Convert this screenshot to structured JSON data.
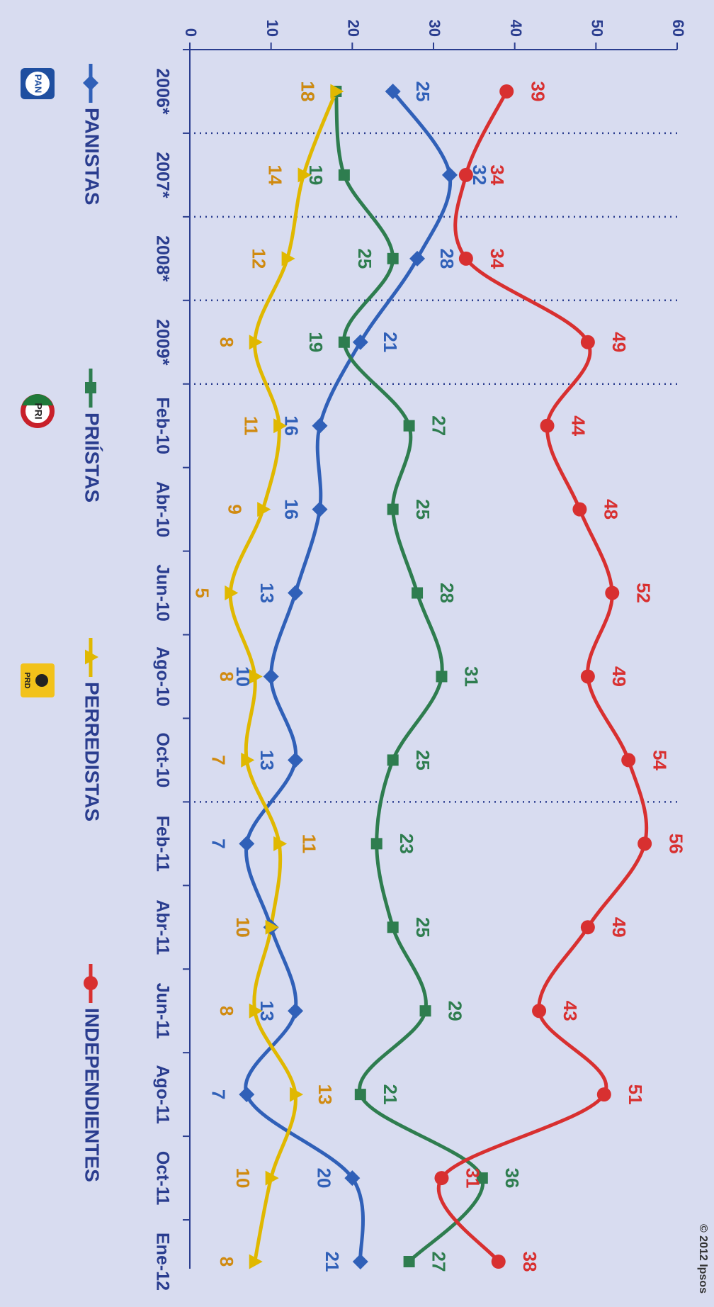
{
  "copyright": "© 2012 Ipsos",
  "chart_data": {
    "type": "line",
    "categories": [
      "2006*",
      "2007*",
      "2008*",
      "2009*",
      "Feb-10",
      "Abr-10",
      "Jun-10",
      "Ago-10",
      "Oct-10",
      "Feb-11",
      "Abr-11",
      "Jun-11",
      "Ago-11",
      "Oct-11",
      "Ene-12"
    ],
    "ylim": [
      0,
      60
    ],
    "yticks": [
      0,
      10,
      20,
      30,
      40,
      50,
      60
    ],
    "grid": false,
    "legend_position": "bottom",
    "dotted_separators_after": [
      "2006*",
      "2007*",
      "2008*",
      "2009*",
      "Oct-10"
    ],
    "series": [
      {
        "name": "PANISTAS",
        "color": "#3060b8",
        "marker": "diamond",
        "values": [
          25,
          32,
          28,
          21,
          16,
          16,
          13,
          10,
          13,
          7,
          10,
          13,
          7,
          20,
          21
        ]
      },
      {
        "name": "PRIÍSTAS",
        "color": "#2e7d4f",
        "marker": "square",
        "values": [
          18,
          19,
          25,
          19,
          27,
          25,
          28,
          31,
          25,
          23,
          25,
          29,
          21,
          36,
          27
        ]
      },
      {
        "name": "PERREDISTAS",
        "color": "#e0b800",
        "label_color": "#d08a10",
        "marker": "triangle",
        "values": [
          18,
          14,
          12,
          8,
          11,
          9,
          5,
          8,
          7,
          11,
          10,
          8,
          13,
          10,
          8
        ]
      },
      {
        "name": "INDEPENDIENTES",
        "color": "#d83030",
        "marker": "circle",
        "values": [
          39,
          34,
          34,
          49,
          44,
          48,
          52,
          49,
          54,
          56,
          49,
          43,
          51,
          31,
          38
        ]
      }
    ],
    "logos": [
      {
        "series": "PANISTAS",
        "text": "PAN"
      },
      {
        "series": "PRIÍSTAS",
        "text": "PRI"
      },
      {
        "series": "PERREDISTAS",
        "text": "PRD"
      }
    ]
  }
}
